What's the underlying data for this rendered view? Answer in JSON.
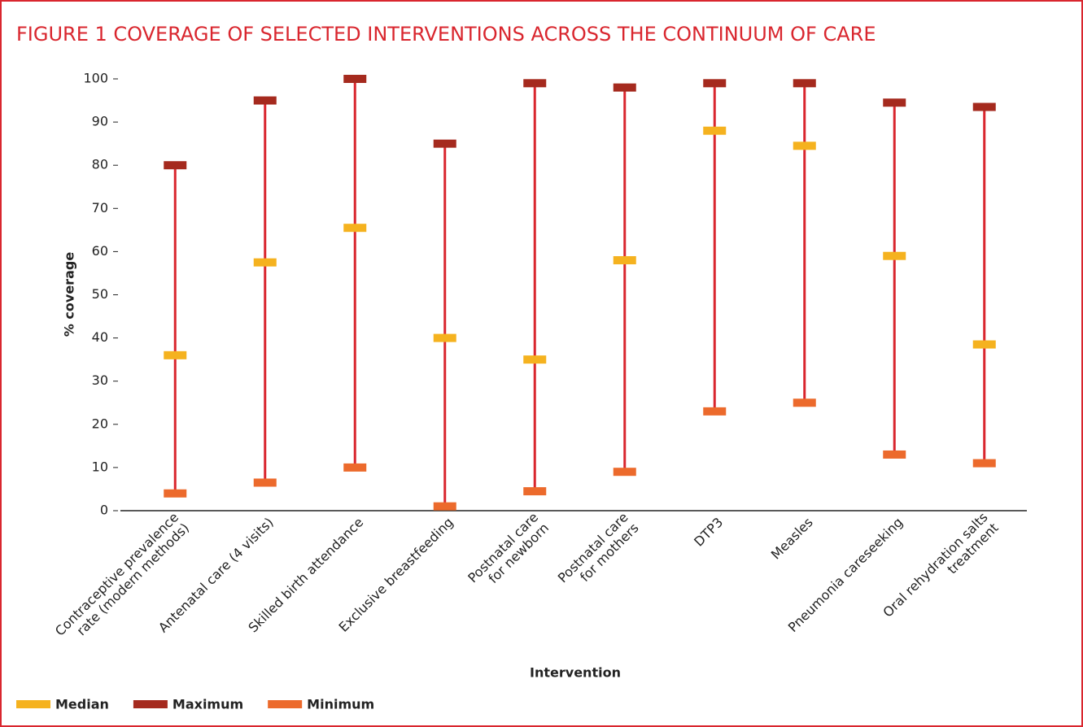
{
  "chart_data": {
    "type": "range",
    "title": "FIGURE 1  COVERAGE OF SELECTED INTERVENTIONS ACROSS THE CONTINUUM OF CARE",
    "y_label": "% coverage",
    "x_label": "Intervention",
    "categories": [
      "Contraceptive prevalence\nrate (modern methods)",
      "Antenatal care (4 visits)",
      "Skilled birth attendance",
      "Exclusive breastfeeding",
      "Postnatal care\nfor newborn",
      "Postnatal care\nfor mothers",
      "DTP3",
      "Measles",
      "Pneumonia careseeking",
      "Oral rehydration salts\ntreatment"
    ],
    "series": [
      {
        "name": "Median",
        "color": "#f5b21f",
        "values": [
          36,
          57.5,
          65.5,
          40,
          35,
          58,
          88,
          84.5,
          59,
          38.5
        ]
      },
      {
        "name": "Maximum",
        "color": "#a52a1e",
        "values": [
          80,
          95,
          100,
          85,
          99,
          98,
          99,
          99,
          94.5,
          93.5
        ]
      },
      {
        "name": "Minimum",
        "color": "#ec6a2c",
        "values": [
          4,
          6.5,
          10,
          1,
          4.5,
          9,
          23,
          25,
          13,
          11
        ]
      }
    ],
    "range_color": "#d9262e",
    "ylim": [
      0,
      100
    ],
    "yticks": [
      0,
      10,
      20,
      30,
      40,
      50,
      60,
      70,
      80,
      90,
      100
    ]
  }
}
